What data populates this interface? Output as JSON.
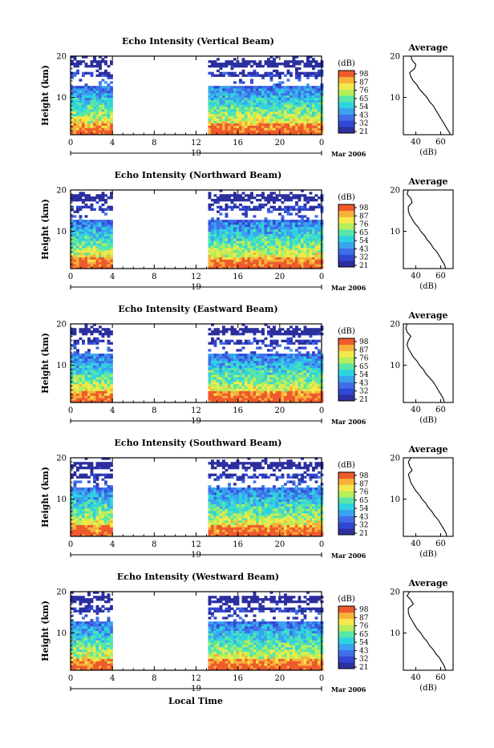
{
  "common": {
    "y_label": "Height (km)",
    "x_ticks": [
      "0",
      "4",
      "8",
      "12",
      "16",
      "20",
      "0"
    ],
    "day_label": "19",
    "month_label": "Mar 2006",
    "colorbar_unit": "(dB)",
    "colorbar_ticks": [
      "98",
      "87",
      "76",
      "65",
      "54",
      "43",
      "32",
      "21"
    ],
    "avg_title": "Average",
    "avg_x_label": "(dB)",
    "avg_y_ticks": [
      "20",
      "10"
    ],
    "avg_x_ticks": [
      "40",
      "60"
    ],
    "x_axis_label": "Local Time"
  },
  "palette": [
    "#2b2f9e",
    "#3148d4",
    "#3f6ee8",
    "#3aa3f0",
    "#2fd3e0",
    "#57e6a8",
    "#b6ee5c",
    "#f4e94a",
    "#f7b13a",
    "#ef5a2c"
  ],
  "chart_data": [
    {
      "type": "heatmap",
      "title": "Echo Intensity (Vertical Beam)",
      "ylabel": "Height (km)",
      "xlabel": "Local Time",
      "x_range_hours": [
        0,
        24
      ],
      "y_range_km": [
        1,
        20
      ],
      "data_gap_hours": [
        4,
        13
      ],
      "colorbar_range_db": [
        21,
        98
      ],
      "average_profile": {
        "title": "Average",
        "xlabel": "(dB)",
        "height_km": [
          1,
          2,
          3,
          4,
          5,
          6,
          7,
          8,
          9,
          10,
          11,
          12,
          13,
          14,
          15,
          16,
          17,
          18,
          19,
          20
        ],
        "db": [
          68,
          66,
          64,
          62,
          60,
          58,
          56,
          54,
          51,
          49,
          46,
          43,
          41,
          38,
          36,
          35,
          39,
          40,
          37,
          36
        ]
      }
    },
    {
      "type": "heatmap",
      "title": "Echo Intensity (Northward Beam)",
      "ylabel": "Height (km)",
      "xlabel": "Local Time",
      "x_range_hours": [
        0,
        24
      ],
      "y_range_km": [
        1,
        20
      ],
      "data_gap_hours": [
        4,
        13
      ],
      "colorbar_range_db": [
        21,
        98
      ],
      "average_profile": {
        "title": "Average",
        "xlabel": "(dB)",
        "height_km": [
          1,
          2,
          3,
          4,
          5,
          6,
          7,
          8,
          9,
          10,
          11,
          12,
          13,
          14,
          15,
          16,
          17,
          18,
          19,
          20
        ],
        "db": [
          64,
          63,
          61,
          59,
          57,
          54,
          52,
          49,
          47,
          44,
          42,
          39,
          37,
          35,
          34,
          34,
          37,
          36,
          33,
          34
        ]
      }
    },
    {
      "type": "heatmap",
      "title": "Echo Intensity (Eastward Beam)",
      "ylabel": "Height (km)",
      "xlabel": "Local Time",
      "x_range_hours": [
        0,
        24
      ],
      "y_range_km": [
        1,
        20
      ],
      "data_gap_hours": [
        4,
        13
      ],
      "colorbar_range_db": [
        21,
        98
      ],
      "average_profile": {
        "title": "Average",
        "xlabel": "(dB)",
        "height_km": [
          1,
          2,
          3,
          4,
          5,
          6,
          7,
          8,
          9,
          10,
          11,
          12,
          13,
          14,
          15,
          16,
          17,
          18,
          19,
          20
        ],
        "db": [
          63,
          62,
          60,
          58,
          56,
          54,
          51,
          48,
          46,
          43,
          41,
          38,
          36,
          34,
          33,
          34,
          36,
          33,
          32,
          33
        ]
      }
    },
    {
      "type": "heatmap",
      "title": "Echo Intensity (Southward Beam)",
      "ylabel": "Height (km)",
      "xlabel": "Local Time",
      "x_range_hours": [
        0,
        24
      ],
      "y_range_km": [
        1,
        20
      ],
      "data_gap_hours": [
        4,
        13
      ],
      "colorbar_range_db": [
        21,
        98
      ],
      "average_profile": {
        "title": "Average",
        "xlabel": "(dB)",
        "height_km": [
          1,
          2,
          3,
          4,
          5,
          6,
          7,
          8,
          9,
          10,
          11,
          12,
          13,
          14,
          15,
          16,
          17,
          18,
          19,
          20
        ],
        "db": [
          65,
          64,
          62,
          60,
          58,
          55,
          53,
          50,
          48,
          45,
          43,
          40,
          38,
          36,
          35,
          34,
          37,
          35,
          34,
          36
        ]
      }
    },
    {
      "type": "heatmap",
      "title": "Echo Intensity (Westward Beam)",
      "ylabel": "Height (km)",
      "xlabel": "Local Time",
      "x_range_hours": [
        0,
        24
      ],
      "y_range_km": [
        1,
        20
      ],
      "data_gap_hours": [
        4,
        13
      ],
      "colorbar_range_db": [
        21,
        98
      ],
      "average_profile": {
        "title": "Average",
        "xlabel": "(dB)",
        "height_km": [
          1,
          2,
          3,
          4,
          5,
          6,
          7,
          8,
          9,
          10,
          11,
          12,
          13,
          14,
          15,
          16,
          17,
          18,
          19,
          20
        ],
        "db": [
          64,
          63,
          61,
          59,
          56,
          54,
          51,
          49,
          46,
          44,
          41,
          39,
          37,
          35,
          34,
          34,
          38,
          36,
          33,
          35
        ]
      }
    }
  ]
}
